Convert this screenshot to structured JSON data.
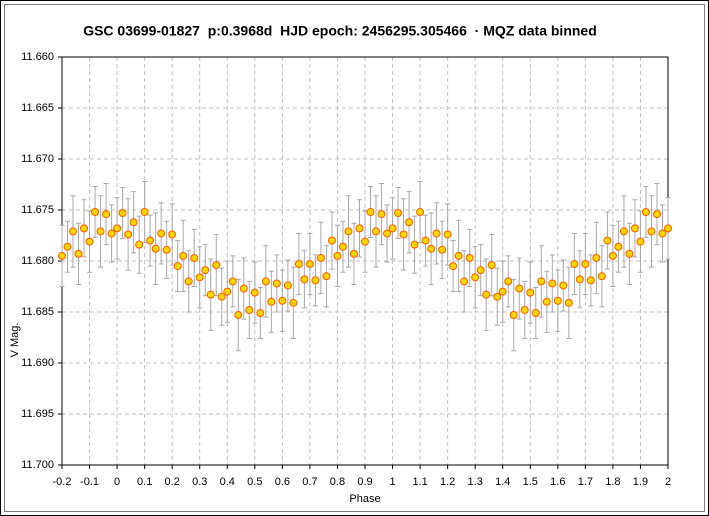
{
  "chart_data": {
    "type": "scatter",
    "title": "GSC 03699-01827  p:0.3968d  HJD epoch: 2456295.305466  · MQZ data binned",
    "x_label": "Phase",
    "y_label": "V Mag.",
    "xlim": [
      -0.2,
      2
    ],
    "ylim": [
      11.66,
      11.7
    ],
    "invert_y": true,
    "grid": true,
    "xticks": [
      -0.2,
      -0.1,
      0,
      0.1,
      0.2,
      0.3,
      0.4,
      0.5,
      0.6,
      0.7,
      0.8,
      0.9,
      1,
      1.1,
      1.2,
      1.3,
      1.4,
      1.5,
      1.6,
      1.7,
      1.8,
      1.9,
      2
    ],
    "yticks": [
      {
        "value": 11.66,
        "label": "11.660"
      },
      {
        "value": 11.665,
        "label": "11.665"
      },
      {
        "value": 11.67,
        "label": "11.670"
      },
      {
        "value": 11.675,
        "label": "11.675"
      },
      {
        "value": 11.68,
        "label": "11.680"
      },
      {
        "value": 11.685,
        "label": "11.685"
      },
      {
        "value": 11.69,
        "label": "11.690"
      },
      {
        "value": 11.695,
        "label": "11.695"
      },
      {
        "value": 11.7,
        "label": "11.700"
      }
    ],
    "series": [
      {
        "color": "#ffd700",
        "edge_color": "#ff5a00",
        "error_color": "#a8a8a8",
        "x": [
          -0.2,
          -0.18,
          -0.16,
          -0.14,
          -0.12,
          -0.1,
          -0.08,
          -0.06,
          -0.04,
          -0.02,
          0,
          0.02,
          0.04,
          0.06,
          0.08,
          0.1,
          0.12,
          0.14,
          0.16,
          0.18,
          0.2,
          0.22,
          0.24,
          0.26,
          0.28,
          0.3,
          0.32,
          0.34,
          0.36,
          0.38,
          0.4,
          0.42,
          0.44,
          0.46,
          0.48,
          0.5,
          0.52,
          0.54,
          0.56,
          0.58,
          0.6,
          0.62,
          0.64,
          0.66,
          0.68,
          0.7,
          0.72,
          0.74,
          0.76,
          0.78,
          0.8,
          0.82,
          0.84,
          0.86,
          0.88,
          0.9,
          0.92,
          0.94,
          0.96,
          0.98,
          1,
          1.02,
          1.04,
          1.06,
          1.08,
          1.1,
          1.12,
          1.14,
          1.16,
          1.18,
          1.2,
          1.22,
          1.24,
          1.26,
          1.28,
          1.3,
          1.32,
          1.34,
          1.36,
          1.38,
          1.4,
          1.42,
          1.44,
          1.46,
          1.48,
          1.5,
          1.52,
          1.54,
          1.56,
          1.58,
          1.6,
          1.62,
          1.64,
          1.66,
          1.68,
          1.7,
          1.72,
          1.74,
          1.76,
          1.78,
          1.8,
          1.82,
          1.84,
          1.86,
          1.88,
          1.9,
          1.92,
          1.94,
          1.96,
          1.98,
          2
        ],
        "values": [
          11.6795,
          11.6786,
          11.6771,
          11.6793,
          11.6768,
          11.6781,
          11.6752,
          11.6771,
          11.6754,
          11.6773,
          11.6768,
          11.6753,
          11.6774,
          11.6762,
          11.6784,
          11.6752,
          11.678,
          11.6788,
          11.6773,
          11.6789,
          11.6774,
          11.6805,
          11.6795,
          11.682,
          11.6797,
          11.6816,
          11.6809,
          11.6833,
          11.6804,
          11.6835,
          11.683,
          11.682,
          11.6853,
          11.6827,
          11.6848,
          11.6831,
          11.6851,
          11.682,
          11.684,
          11.6822,
          11.6839,
          11.6824,
          11.6841,
          11.6803,
          11.6818,
          11.6803,
          11.6819,
          11.6797,
          11.6815,
          11.678,
          11.6795,
          11.6786,
          11.6771,
          11.6793,
          11.6768,
          11.6781,
          11.6752,
          11.6771,
          11.6754,
          11.6773,
          11.6768,
          11.6753,
          11.6774,
          11.6762,
          11.6784,
          11.6752,
          11.678,
          11.6788,
          11.6773,
          11.6789,
          11.6774,
          11.6805,
          11.6795,
          11.682,
          11.6797,
          11.6816,
          11.6809,
          11.6833,
          11.6804,
          11.6835,
          11.683,
          11.682,
          11.6853,
          11.6827,
          11.6848,
          11.6831,
          11.6851,
          11.682,
          11.684,
          11.6822,
          11.6839,
          11.6824,
          11.6841,
          11.6803,
          11.6818,
          11.6803,
          11.6819,
          11.6797,
          11.6815,
          11.678,
          11.6795,
          11.6786,
          11.6771,
          11.6793,
          11.6768,
          11.6781,
          11.6752,
          11.6771,
          11.6754,
          11.6773,
          11.6768
        ],
        "errors": [
          0.003,
          0.0025,
          0.0035,
          0.003,
          0.0028,
          0.003,
          0.0025,
          0.0035,
          0.003,
          0.0028,
          0.003,
          0.0025,
          0.0035,
          0.003,
          0.0028,
          0.003,
          0.0025,
          0.0035,
          0.003,
          0.0028,
          0.003,
          0.0025,
          0.0035,
          0.003,
          0.0028,
          0.003,
          0.0025,
          0.0035,
          0.003,
          0.0028,
          0.003,
          0.0025,
          0.0035,
          0.003,
          0.0028,
          0.003,
          0.0025,
          0.0035,
          0.003,
          0.0028,
          0.003,
          0.0025,
          0.0035,
          0.003,
          0.0028,
          0.003,
          0.0025,
          0.0035,
          0.003,
          0.0028,
          0.003,
          0.0025,
          0.0035,
          0.003,
          0.0028,
          0.003,
          0.0025,
          0.0035,
          0.003,
          0.0028,
          0.003,
          0.0025,
          0.0035,
          0.003,
          0.0028,
          0.003,
          0.0025,
          0.0035,
          0.003,
          0.0028,
          0.003,
          0.0025,
          0.0035,
          0.003,
          0.0028,
          0.003,
          0.0025,
          0.0035,
          0.003,
          0.0028,
          0.003,
          0.0025,
          0.0035,
          0.003,
          0.0028,
          0.003,
          0.0025,
          0.0035,
          0.003,
          0.0028,
          0.003,
          0.0025,
          0.0035,
          0.003,
          0.0028,
          0.003,
          0.0025,
          0.0035,
          0.003,
          0.0028,
          0.003,
          0.0025,
          0.0035,
          0.003,
          0.0028,
          0.003,
          0.0025,
          0.0035,
          0.003,
          0.0028,
          0.003
        ]
      }
    ]
  }
}
